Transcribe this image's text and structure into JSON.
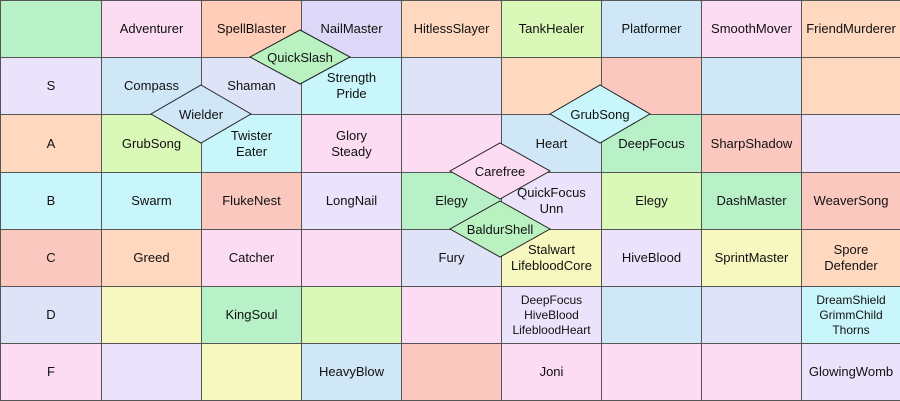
{
  "colors": {
    "green": "#b8f0c8",
    "pink": "#fbdcf2",
    "salmon": "#ffcdb8",
    "lavender": "#ddd8f8",
    "cyan": "#c9f6fb",
    "peach": "#fed8bf",
    "lightblue": "#cfe7f7",
    "yellow": "#f7f7c0",
    "red": "#fbc8c0",
    "lightgreen": "#daf8b8",
    "paleviolet": "#ebe2fb",
    "blueviolet": "#dfe3f8",
    "diamond": "#b9f2c0",
    "diamond_pink": "#fbdcf2"
  },
  "header": {
    "corner": "",
    "columns": [
      "Adventurer",
      "SpellBlaster",
      "NailMaster",
      "HitlessSlayer",
      "TankHealer",
      "Platformer",
      "SmoothMover",
      "FriendMurderer"
    ]
  },
  "rows": [
    {
      "tier": "S",
      "cells": [
        {
          "lines": [
            "Compass"
          ]
        },
        {
          "lines": [
            "Shaman"
          ]
        },
        {
          "lines": [
            "Strength",
            "Pride"
          ]
        },
        {
          "lines": []
        },
        {
          "lines": []
        },
        {
          "lines": []
        },
        {
          "lines": []
        },
        {
          "lines": []
        }
      ]
    },
    {
      "tier": "A",
      "cells": [
        {
          "lines": [
            "GrubSong"
          ]
        },
        {
          "lines": [
            "Twister",
            "Eater"
          ]
        },
        {
          "lines": [
            "Glory",
            "Steady"
          ]
        },
        {
          "lines": []
        },
        {
          "lines": [
            "Heart"
          ]
        },
        {
          "lines": [
            "DeepFocus"
          ]
        },
        {
          "lines": [
            "SharpShadow"
          ]
        },
        {
          "lines": []
        }
      ]
    },
    {
      "tier": "B",
      "cells": [
        {
          "lines": [
            "Swarm"
          ]
        },
        {
          "lines": [
            "FlukeNest"
          ]
        },
        {
          "lines": [
            "LongNail"
          ]
        },
        {
          "lines": [
            "Elegy"
          ]
        },
        {
          "lines": [
            "QuickFocus",
            "Unn"
          ]
        },
        {
          "lines": [
            "Elegy"
          ]
        },
        {
          "lines": [
            "DashMaster"
          ]
        },
        {
          "lines": [
            "WeaverSong"
          ]
        }
      ]
    },
    {
      "tier": "C",
      "cells": [
        {
          "lines": [
            "Greed"
          ]
        },
        {
          "lines": [
            "Catcher"
          ]
        },
        {
          "lines": []
        },
        {
          "lines": [
            "Fury"
          ]
        },
        {
          "lines": [
            "Stalwart",
            "LifebloodCore"
          ]
        },
        {
          "lines": [
            "HiveBlood"
          ]
        },
        {
          "lines": [
            "SprintMaster"
          ]
        },
        {
          "lines": [
            "Spore",
            "Defender"
          ]
        }
      ]
    },
    {
      "tier": "D",
      "cells": [
        {
          "lines": []
        },
        {
          "lines": [
            "KingSoul"
          ]
        },
        {
          "lines": []
        },
        {
          "lines": []
        },
        {
          "lines": [
            "DeepFocus",
            "HiveBlood",
            "LifebloodHeart"
          ]
        },
        {
          "lines": []
        },
        {
          "lines": []
        },
        {
          "lines": [
            "DreamShield",
            "GrimmChild",
            "Thorns"
          ]
        }
      ]
    },
    {
      "tier": "F",
      "cells": [
        {
          "lines": []
        },
        {
          "lines": []
        },
        {
          "lines": [
            "HeavyBlow"
          ]
        },
        {
          "lines": []
        },
        {
          "lines": [
            "Joni"
          ]
        },
        {
          "lines": []
        },
        {
          "lines": []
        },
        {
          "lines": [
            "GlowingWomb"
          ]
        }
      ]
    }
  ],
  "cell_colors": [
    [
      "green",
      "pink",
      "salmon",
      "lavender",
      "peach",
      "lightgreen",
      "lightblue",
      "pink",
      "peach"
    ],
    [
      "paleviolet",
      "lightblue",
      "blueviolet",
      "cyan",
      "blueviolet",
      "peach",
      "red",
      "lightblue",
      "peach"
    ],
    [
      "peach",
      "lightgreen",
      "cyan",
      "pink",
      "pink",
      "lightblue",
      "green",
      "red",
      "paleviolet"
    ],
    [
      "cyan",
      "cyan",
      "red",
      "paleviolet",
      "green",
      "paleviolet",
      "lightgreen",
      "green",
      "red"
    ],
    [
      "red",
      "peach",
      "pink",
      "pink",
      "blueviolet",
      "yellow",
      "paleviolet",
      "yellow",
      "peach"
    ],
    [
      "blueviolet",
      "yellow",
      "green",
      "lightgreen",
      "pink",
      "paleviolet",
      "lightblue",
      "blueviolet",
      "cyan"
    ],
    [
      "pink",
      "paleviolet",
      "yellow",
      "lightblue",
      "red",
      "pink",
      "pink",
      "pink",
      "paleviolet"
    ]
  ],
  "tags": [
    {
      "label": "QuickSlash",
      "fill": "diamond"
    },
    {
      "label": "Wielder",
      "fill": "lightblue"
    },
    {
      "label": "GrubSong",
      "fill": "cyan"
    },
    {
      "label": "Carefree",
      "fill": "diamond_pink"
    },
    {
      "label": "BaldurShell",
      "fill": "diamond"
    }
  ]
}
